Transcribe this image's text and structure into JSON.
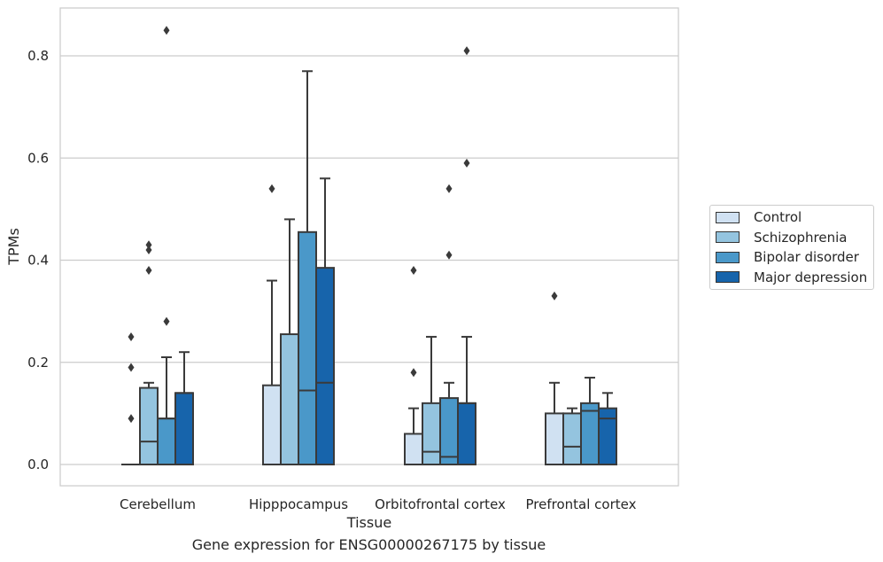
{
  "chart_data": {
    "type": "box",
    "xlabel": "Tissue",
    "ylabel": "TPMs",
    "ylim": [
      -0.04,
      0.895
    ],
    "yticks": [
      0.0,
      0.2,
      0.4,
      0.6,
      0.8
    ],
    "ytick_labels": [
      "0.0",
      "0.2",
      "0.4",
      "0.6",
      "0.8"
    ],
    "categories": [
      "Cerebellum",
      "Hipppocampus",
      "Orbitofrontal cortex",
      "Prefrontal cortex"
    ],
    "grid": true,
    "legend_position": "right",
    "series": [
      {
        "name": "Control",
        "color": "#d0e1f2",
        "boxes": [
          {
            "q1": 0.0,
            "median": 0.0,
            "q3": 0.0,
            "whisker_low": 0.0,
            "whisker_high": 0.0,
            "outliers": [
              0.09,
              0.19,
              0.25
            ]
          },
          {
            "q1": 0.0,
            "median": 0.0,
            "q3": 0.155,
            "whisker_low": 0.0,
            "whisker_high": 0.36,
            "outliers": [
              0.54
            ]
          },
          {
            "q1": 0.0,
            "median": 0.0,
            "q3": 0.06,
            "whisker_low": 0.0,
            "whisker_high": 0.11,
            "outliers": [
              0.18,
              0.38
            ]
          },
          {
            "q1": 0.0,
            "median": 0.0,
            "q3": 0.1,
            "whisker_low": 0.0,
            "whisker_high": 0.16,
            "outliers": [
              0.33
            ]
          }
        ]
      },
      {
        "name": "Schizophrenia",
        "color": "#94c4df",
        "boxes": [
          {
            "q1": 0.0,
            "median": 0.045,
            "q3": 0.15,
            "whisker_low": 0.0,
            "whisker_high": 0.16,
            "outliers": [
              0.38,
              0.42,
              0.43
            ]
          },
          {
            "q1": 0.0,
            "median": 0.0,
            "q3": 0.255,
            "whisker_low": 0.0,
            "whisker_high": 0.48,
            "outliers": []
          },
          {
            "q1": 0.0,
            "median": 0.025,
            "q3": 0.12,
            "whisker_low": 0.0,
            "whisker_high": 0.25,
            "outliers": []
          },
          {
            "q1": 0.0,
            "median": 0.035,
            "q3": 0.1,
            "whisker_low": 0.0,
            "whisker_high": 0.11,
            "outliers": []
          }
        ]
      },
      {
        "name": "Bipolar disorder",
        "color": "#4a98c9",
        "boxes": [
          {
            "q1": 0.0,
            "median": 0.09,
            "q3": 0.09,
            "whisker_low": 0.0,
            "whisker_high": 0.21,
            "outliers": [
              0.28,
              0.85
            ]
          },
          {
            "q1": 0.0,
            "median": 0.145,
            "q3": 0.455,
            "whisker_low": 0.0,
            "whisker_high": 0.77,
            "outliers": []
          },
          {
            "q1": 0.0,
            "median": 0.015,
            "q3": 0.13,
            "whisker_low": 0.0,
            "whisker_high": 0.16,
            "outliers": [
              0.41,
              0.54
            ]
          },
          {
            "q1": 0.0,
            "median": 0.105,
            "q3": 0.12,
            "whisker_low": 0.0,
            "whisker_high": 0.17,
            "outliers": []
          }
        ]
      },
      {
        "name": "Major depression",
        "color": "#1764ab",
        "boxes": [
          {
            "q1": 0.0,
            "median": 0.14,
            "q3": 0.14,
            "whisker_low": 0.0,
            "whisker_high": 0.22,
            "outliers": []
          },
          {
            "q1": 0.0,
            "median": 0.16,
            "q3": 0.385,
            "whisker_low": 0.0,
            "whisker_high": 0.56,
            "outliers": []
          },
          {
            "q1": 0.0,
            "median": 0.12,
            "q3": 0.12,
            "whisker_low": 0.0,
            "whisker_high": 0.25,
            "outliers": [
              0.59,
              0.81
            ]
          },
          {
            "q1": 0.0,
            "median": 0.09,
            "q3": 0.11,
            "whisker_low": 0.0,
            "whisker_high": 0.14,
            "outliers": []
          }
        ]
      }
    ]
  },
  "caption": "Gene expression for ENSG00000267175 by tissue"
}
